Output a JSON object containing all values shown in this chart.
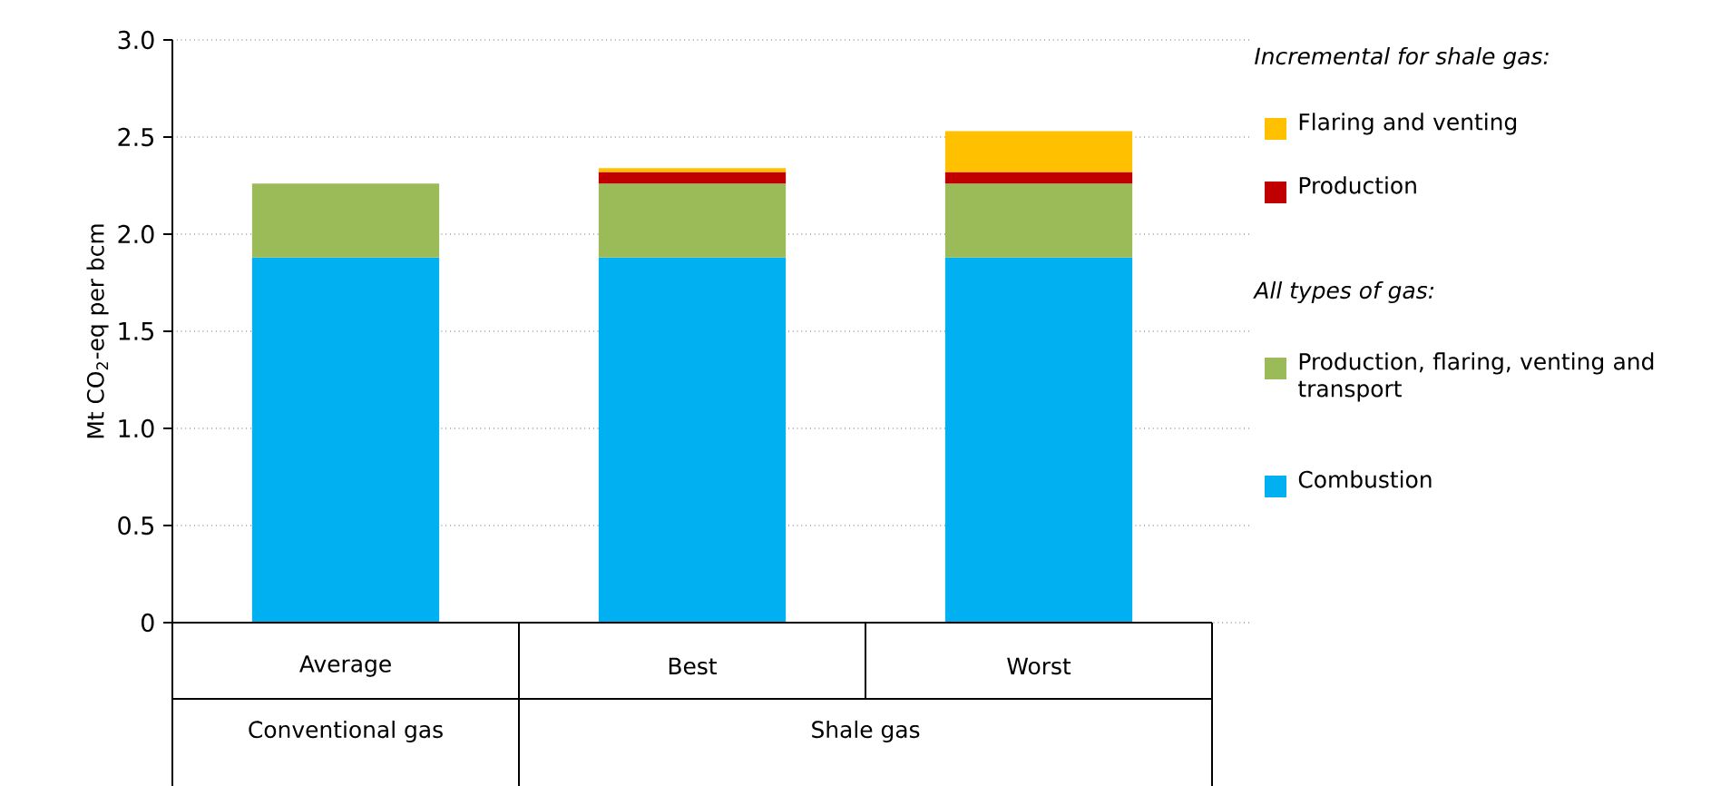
{
  "chart_data": {
    "type": "bar",
    "stacked": true,
    "ylabel": "Mt CO$_{2}$-eq per bcm",
    "categories": [
      "Average",
      "Best",
      "Worst"
    ],
    "series": [
      {
        "name": "Combustion",
        "color": "#00b0f0",
        "values": [
          1.88,
          1.88,
          1.88
        ]
      },
      {
        "name": "Production, flaring, venting and transport",
        "color": "#9bbb59",
        "values": [
          0.38,
          0.38,
          0.38
        ]
      },
      {
        "name": "Production",
        "color": "#c00000",
        "values": [
          null,
          0.06,
          0.06
        ]
      },
      {
        "name": "Flaring and venting",
        "color": "#ffc000",
        "values": [
          null,
          0.02,
          0.21
        ]
      }
    ],
    "ylim": [
      0,
      3
    ],
    "yticks": [
      0,
      0.5,
      {
        "value": 1,
        "label": "1.0"
      },
      1.5,
      {
        "value": 2,
        "label": "2.0"
      },
      2.5,
      {
        "value": 3,
        "label": "3.0"
      }
    ],
    "grid": "y",
    "legend": "right",
    "annotations": [
      "Incremental for shale gas:",
      "All types of gas:",
      "Conventional gas",
      "Shale gas"
    ]
  }
}
